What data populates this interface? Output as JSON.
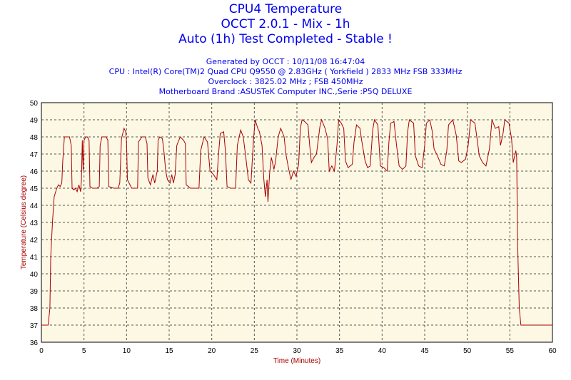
{
  "header": {
    "title": "CPU4 Temperature",
    "subtitle": "OCCT 2.0.1 - Mix - 1h",
    "status": "Auto (1h) Test Completed - Stable !",
    "generated": "Generated by OCCT : 10/11/08 16:47:04",
    "cpu": "CPU : Intel(R) Core(TM)2 Quad CPU Q9550 @ 2.83GHz ( Yorkfield ) 2833 MHz FSB 333MHz",
    "overclock": "Overclock : 3825.02 MHz ; FSB 450MHz",
    "motherboard": "Motherboard Brand :ASUSTeK Computer INC.,Serie :P5Q DELUXE"
  },
  "colors": {
    "title": "#0000ee",
    "axis_label": "#aa0000",
    "series": "#aa0000",
    "plot_bg": "#fdf8e4",
    "grid": "#555555"
  },
  "chart_data": {
    "type": "line",
    "title": "CPU4 Temperature",
    "xlabel": "Time (Minutes)",
    "ylabel": "Temperature (Celsius degree)",
    "xlim": [
      0,
      60
    ],
    "ylim": [
      36,
      50
    ],
    "xticks": [
      0,
      5,
      10,
      15,
      20,
      25,
      30,
      35,
      40,
      45,
      50,
      55,
      60
    ],
    "yticks": [
      36,
      37,
      38,
      39,
      40,
      41,
      42,
      43,
      44,
      45,
      46,
      47,
      48,
      49,
      50
    ],
    "grid": true,
    "series": [
      {
        "values": [
          [
            0,
            37
          ],
          [
            0.8,
            37
          ],
          [
            1.0,
            38
          ],
          [
            1.1,
            41
          ],
          [
            1.3,
            43
          ],
          [
            1.5,
            44.5
          ],
          [
            1.8,
            45
          ],
          [
            2.0,
            45.2
          ],
          [
            2.2,
            45.1
          ],
          [
            2.4,
            45.3
          ],
          [
            2.5,
            46.5
          ],
          [
            2.7,
            48
          ],
          [
            3.0,
            48
          ],
          [
            3.3,
            48
          ],
          [
            3.5,
            47.5
          ],
          [
            3.6,
            45
          ],
          [
            3.8,
            44.9
          ],
          [
            4.0,
            45
          ],
          [
            4.2,
            44.8
          ],
          [
            4.4,
            45.2
          ],
          [
            4.6,
            44.8
          ],
          [
            4.7,
            45.5
          ],
          [
            4.8,
            47.8
          ],
          [
            4.9,
            46
          ],
          [
            5.0,
            47.8
          ],
          [
            5.2,
            48
          ],
          [
            5.4,
            48
          ],
          [
            5.6,
            47.8
          ],
          [
            5.7,
            45.1
          ],
          [
            6.0,
            45
          ],
          [
            6.5,
            45
          ],
          [
            6.8,
            45.1
          ],
          [
            6.9,
            47.5
          ],
          [
            7.1,
            48
          ],
          [
            7.6,
            48
          ],
          [
            7.8,
            47.8
          ],
          [
            7.9,
            45.1
          ],
          [
            8.5,
            45
          ],
          [
            9.0,
            45
          ],
          [
            9.2,
            45.3
          ],
          [
            9.4,
            47.9
          ],
          [
            9.7,
            48.5
          ],
          [
            9.9,
            48.3
          ],
          [
            10.0,
            47.7
          ],
          [
            10.1,
            45.5
          ],
          [
            10.6,
            45
          ],
          [
            11.3,
            45
          ],
          [
            11.4,
            47.7
          ],
          [
            11.8,
            48
          ],
          [
            12.2,
            48
          ],
          [
            12.4,
            47.6
          ],
          [
            12.5,
            45.6
          ],
          [
            12.8,
            45.2
          ],
          [
            13.1,
            45.8
          ],
          [
            13.3,
            45.3
          ],
          [
            13.6,
            46
          ],
          [
            13.7,
            47.8
          ],
          [
            13.9,
            48
          ],
          [
            14.2,
            47.9
          ],
          [
            14.4,
            47.1
          ],
          [
            14.6,
            46
          ],
          [
            14.8,
            45.5
          ],
          [
            15.1,
            45.3
          ],
          [
            15.3,
            45.8
          ],
          [
            15.5,
            45.3
          ],
          [
            15.7,
            45.8
          ],
          [
            15.9,
            47.5
          ],
          [
            16.3,
            48
          ],
          [
            16.7,
            47.8
          ],
          [
            16.9,
            47.6
          ],
          [
            17.0,
            45.2
          ],
          [
            17.5,
            45
          ],
          [
            18.5,
            45
          ],
          [
            18.7,
            47.2
          ],
          [
            19.1,
            48
          ],
          [
            19.5,
            47.7
          ],
          [
            19.8,
            46
          ],
          [
            20.2,
            45.8
          ],
          [
            20.6,
            45.5
          ],
          [
            20.8,
            47
          ],
          [
            21.0,
            48.2
          ],
          [
            21.4,
            48.3
          ],
          [
            21.6,
            47.2
          ],
          [
            21.8,
            45.1
          ],
          [
            22.2,
            45
          ],
          [
            22.8,
            45
          ],
          [
            23.0,
            47.5
          ],
          [
            23.4,
            48.4
          ],
          [
            23.7,
            48
          ],
          [
            24.0,
            46.8
          ],
          [
            24.3,
            45.5
          ],
          [
            24.6,
            45.3
          ],
          [
            24.9,
            47.8
          ],
          [
            25.1,
            49
          ],
          [
            25.4,
            48.5
          ],
          [
            25.6,
            48.3
          ],
          [
            25.9,
            47.5
          ],
          [
            26.1,
            45.6
          ],
          [
            26.3,
            44.5
          ],
          [
            26.5,
            45.5
          ],
          [
            26.6,
            44.2
          ],
          [
            26.8,
            45.9
          ],
          [
            27.0,
            46.8
          ],
          [
            27.3,
            46.1
          ],
          [
            27.5,
            46.6
          ],
          [
            27.8,
            48
          ],
          [
            28.1,
            48.5
          ],
          [
            28.5,
            48
          ],
          [
            28.7,
            47
          ],
          [
            29.0,
            46.2
          ],
          [
            29.3,
            45.5
          ],
          [
            29.6,
            46
          ],
          [
            29.9,
            45.7
          ],
          [
            30.2,
            46.4
          ],
          [
            30.4,
            48.5
          ],
          [
            30.6,
            49
          ],
          [
            30.9,
            48.9
          ],
          [
            31.3,
            48.7
          ],
          [
            31.5,
            47.5
          ],
          [
            31.7,
            46.5
          ],
          [
            32.0,
            46.8
          ],
          [
            32.3,
            47
          ],
          [
            32.7,
            48.6
          ],
          [
            32.9,
            49
          ],
          [
            33.3,
            48.5
          ],
          [
            33.6,
            47.9
          ],
          [
            33.8,
            46
          ],
          [
            34.1,
            46.3
          ],
          [
            34.4,
            46
          ],
          [
            34.7,
            47.5
          ],
          [
            34.9,
            49
          ],
          [
            35.2,
            48.8
          ],
          [
            35.5,
            48.5
          ],
          [
            35.7,
            46.6
          ],
          [
            36.0,
            46.2
          ],
          [
            36.5,
            46.4
          ],
          [
            36.7,
            47.7
          ],
          [
            37.0,
            48.7
          ],
          [
            37.4,
            48.5
          ],
          [
            37.6,
            47.8
          ],
          [
            38.0,
            46.6
          ],
          [
            38.3,
            46.2
          ],
          [
            38.6,
            46.3
          ],
          [
            38.9,
            48.4
          ],
          [
            39.1,
            49
          ],
          [
            39.5,
            48.7
          ],
          [
            39.8,
            46.3
          ],
          [
            40.2,
            46.2
          ],
          [
            40.6,
            46
          ],
          [
            40.8,
            47.7
          ],
          [
            41.0,
            48.8
          ],
          [
            41.4,
            48.9
          ],
          [
            41.7,
            47.5
          ],
          [
            42.0,
            46.3
          ],
          [
            42.4,
            46.1
          ],
          [
            42.8,
            46.3
          ],
          [
            43.0,
            48.3
          ],
          [
            43.2,
            49
          ],
          [
            43.7,
            48.8
          ],
          [
            43.9,
            46.9
          ],
          [
            44.3,
            46.3
          ],
          [
            44.7,
            46.2
          ],
          [
            45.0,
            47.5
          ],
          [
            45.2,
            48.8
          ],
          [
            45.6,
            49
          ],
          [
            45.9,
            48.3
          ],
          [
            46.1,
            47.3
          ],
          [
            46.5,
            46.9
          ],
          [
            46.9,
            46.4
          ],
          [
            47.3,
            46.3
          ],
          [
            47.6,
            47.2
          ],
          [
            47.8,
            48.7
          ],
          [
            48.3,
            49
          ],
          [
            48.7,
            48.1
          ],
          [
            49.0,
            46.6
          ],
          [
            49.3,
            46.5
          ],
          [
            49.8,
            46.7
          ],
          [
            50.1,
            47.5
          ],
          [
            50.4,
            49
          ],
          [
            50.9,
            48.8
          ],
          [
            51.2,
            47.7
          ],
          [
            51.4,
            46.9
          ],
          [
            51.8,
            46.5
          ],
          [
            52.2,
            46.3
          ],
          [
            52.6,
            47.3
          ],
          [
            52.9,
            49
          ],
          [
            53.3,
            48.5
          ],
          [
            53.7,
            48.6
          ],
          [
            53.9,
            47.5
          ],
          [
            54.2,
            48.2
          ],
          [
            54.4,
            49
          ],
          [
            54.9,
            48.8
          ],
          [
            55.2,
            47.9
          ],
          [
            55.4,
            46.5
          ],
          [
            55.7,
            47.2
          ],
          [
            55.8,
            46.8
          ],
          [
            55.9,
            42
          ],
          [
            56.1,
            38
          ],
          [
            56.3,
            37
          ],
          [
            57.0,
            37
          ],
          [
            60,
            37
          ]
        ]
      }
    ]
  }
}
